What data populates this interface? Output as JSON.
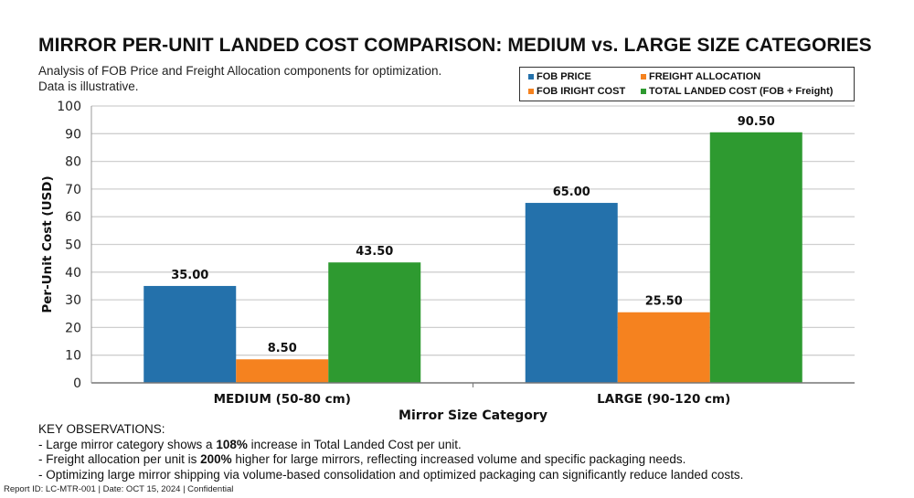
{
  "title": "MIRROR PER-UNIT LANDED COST COMPARISON: MEDIUM vs. LARGE SIZE CATEGORIES",
  "subtitle_lines": [
    "Analysis of FOB Price and Freight Allocation components for optimization.",
    "Data is illustrative."
  ],
  "legend": {
    "items": [
      {
        "label": "FOB PRICE",
        "color": "#2471ab"
      },
      {
        "label": "FREIGHT ALLOCATION",
        "color": "#f5821f"
      },
      {
        "label": "FOB IRIGHT COST",
        "color": "#f5821f"
      },
      {
        "label": "TOTAL LANDED COST (FOB + Freight)",
        "color": "#2e9a30"
      }
    ]
  },
  "chart_data": {
    "type": "bar",
    "title": "MIRROR PER-UNIT LANDED COST COMPARISON: MEDIUM vs. LARGE SIZE CATEGORIES",
    "xlabel": "Mirror Size Category",
    "ylabel": "Per-Unit Cost (USD)",
    "ylim": [
      0,
      100
    ],
    "yticks": [
      0,
      10,
      20,
      30,
      40,
      50,
      60,
      70,
      80,
      90,
      100
    ],
    "grid": true,
    "legend_position": "top-right",
    "categories": [
      "MEDIUM (50-80 cm)",
      "LARGE (90-120 cm)"
    ],
    "series": [
      {
        "name": "FOB PRICE",
        "color": "#2471ab",
        "values": [
          35.0,
          65.0
        ],
        "labels": [
          "35.00",
          "65.00"
        ]
      },
      {
        "name": "FREIGHT ALLOCATION",
        "color": "#f5821f",
        "values": [
          8.5,
          25.5
        ],
        "labels": [
          "8.50",
          "25.50"
        ]
      },
      {
        "name": "TOTAL LANDED COST (FOB + Freight)",
        "color": "#2e9a30",
        "values": [
          43.5,
          90.5
        ],
        "labels": [
          "43.50",
          "90.50"
        ]
      }
    ]
  },
  "observations": {
    "heading": "KEY OBSERVATIONS:",
    "items": [
      {
        "pre": "- Large mirror category shows a ",
        "bold": "108%",
        "post": " increase in Total Landed Cost per unit."
      },
      {
        "pre": "- Freight allocation per unit is ",
        "bold": "200%",
        "post": " higher for large mirrors, reflecting increased volume and specific packaging needs."
      },
      {
        "pre": "- Optimizing large mirror shipping via volume-based consolidation and optimized packaging can significantly reduce landed costs.",
        "bold": "",
        "post": ""
      }
    ]
  },
  "footer": "Report ID: LC-MTR-001  | Date: OCT 15, 2024  | Confidential"
}
